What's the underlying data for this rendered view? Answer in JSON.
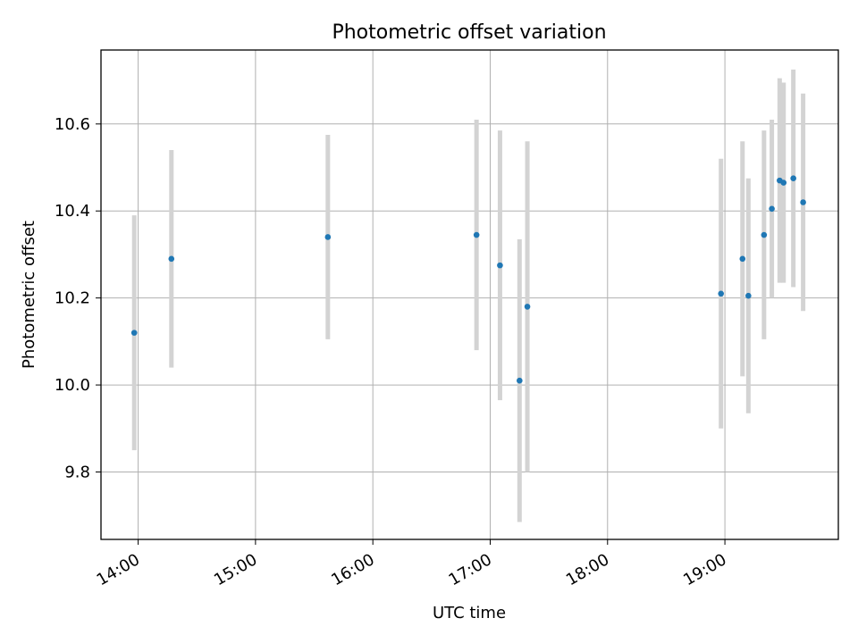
{
  "chart_data": {
    "type": "scatter",
    "title": "Photometric offset variation",
    "xlabel": "UTC time",
    "ylabel": "Photometric offset",
    "x_tick_labels": [
      "14:00",
      "15:00",
      "16:00",
      "17:00",
      "18:00",
      "19:00"
    ],
    "y_tick_labels": [
      "9.8",
      "10.0",
      "10.2",
      "10.4",
      "10.6"
    ],
    "y_ticks": [
      9.8,
      10.0,
      10.2,
      10.4,
      10.6
    ],
    "xlim": [
      "13:41",
      "19:58"
    ],
    "ylim": [
      9.645,
      10.77
    ],
    "grid": true,
    "marker_color": "#1f77b4",
    "errorbar_color": "#d3d3d3",
    "series": [
      {
        "points": [
          {
            "x": "13:58",
            "y": 10.12,
            "err": 0.27
          },
          {
            "x": "14:17",
            "y": 10.29,
            "err": 0.25
          },
          {
            "x": "15:37",
            "y": 10.34,
            "err": 0.235
          },
          {
            "x": "16:53",
            "y": 10.345,
            "err": 0.265
          },
          {
            "x": "17:05",
            "y": 10.275,
            "err": 0.31
          },
          {
            "x": "17:15",
            "y": 10.01,
            "err": 0.325
          },
          {
            "x": "17:19",
            "y": 10.18,
            "err": 0.38
          },
          {
            "x": "18:58",
            "y": 10.21,
            "err": 0.31
          },
          {
            "x": "19:09",
            "y": 10.29,
            "err": 0.27
          },
          {
            "x": "19:12",
            "y": 10.205,
            "err": 0.27
          },
          {
            "x": "19:20",
            "y": 10.345,
            "err": 0.24
          },
          {
            "x": "19:24",
            "y": 10.405,
            "err": 0.205
          },
          {
            "x": "19:28",
            "y": 10.47,
            "err": 0.235
          },
          {
            "x": "19:30",
            "y": 10.465,
            "err": 0.23
          },
          {
            "x": "19:35",
            "y": 10.475,
            "err": 0.25
          },
          {
            "x": "19:40",
            "y": 10.42,
            "err": 0.25
          }
        ]
      }
    ]
  }
}
